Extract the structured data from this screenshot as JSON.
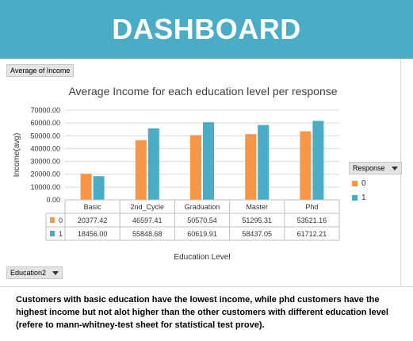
{
  "header": {
    "title": "DASHBOARD"
  },
  "pivot": {
    "value_field": "Average of Income",
    "row_field": "Education2",
    "legend_field": "Response"
  },
  "colors": {
    "banner": "#4bacc6",
    "series_0": "#f79646",
    "series_1": "#4bacc6"
  },
  "chart_data": {
    "type": "bar",
    "title": "Average Income for each education level per response",
    "xlabel": "Education Level",
    "ylabel": "Income(avg)",
    "ylim": [
      0,
      70000
    ],
    "yticks": [
      "0.00",
      "10000.00",
      "20000.00",
      "30000.00",
      "40000.00",
      "50000.00",
      "60000.00",
      "70000.00"
    ],
    "categories": [
      "Basic",
      "2nd_Cycle",
      "Graduation",
      "Master",
      "Phd"
    ],
    "series": [
      {
        "name": "0",
        "values": [
          20377.42,
          46597.41,
          50570.54,
          51295.31,
          53521.16
        ],
        "labels": [
          "20377.42",
          "46597.41",
          "50570.54",
          "51295.31",
          "53521.16"
        ]
      },
      {
        "name": "1",
        "values": [
          18456.0,
          55848.68,
          60619.91,
          58437.05,
          61712.21
        ],
        "labels": [
          "18456.00",
          "55848.68",
          "60619.91",
          "58437.05",
          "61712.21"
        ]
      }
    ],
    "legend": "right",
    "grid": true
  },
  "note": {
    "text": "Customers with basic education have the lowest income, while phd customers have the highest income but not alot higher than the other customers with different education level (refere to mann-whitney-test sheet for statistical test prove)."
  }
}
